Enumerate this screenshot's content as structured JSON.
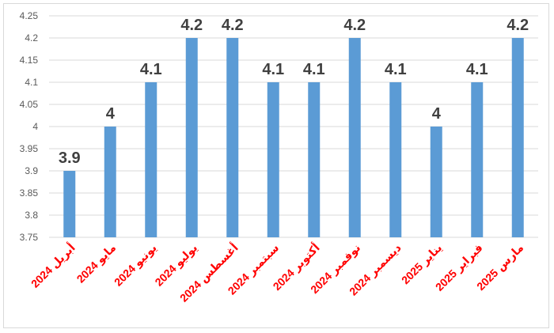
{
  "chart_data": {
    "type": "bar",
    "categories": [
      "أبريل 2024",
      "مايو 2024",
      "يونيو 2024",
      "يوليو 2024",
      "أغسطس 2024",
      "سبتمبر 2024",
      "أكتوبر 2024",
      "نوفمبر 2024",
      "ديسمبر 2024",
      "يناير 2025",
      "فبراير 2025",
      "مارس 2025"
    ],
    "values": [
      3.9,
      4.0,
      4.1,
      4.2,
      4.2,
      4.1,
      4.1,
      4.2,
      4.1,
      4.0,
      4.1,
      4.2
    ],
    "data_labels": [
      "3.9",
      "4",
      "4.1",
      "4.2",
      "4.2",
      "4.1",
      "4.1",
      "4.2",
      "4.1",
      "4",
      "4.1",
      "4.2"
    ],
    "y_ticks": [
      "3.75",
      "3.8",
      "3.85",
      "3.9",
      "3.95",
      "4",
      "4.05",
      "4.1",
      "4.15",
      "4.2",
      "4.25"
    ],
    "ylim": [
      3.75,
      4.25
    ],
    "title": "",
    "xlabel": "",
    "ylabel": "",
    "grid": true,
    "legend": "none",
    "colors": {
      "bar": "#5b9bd5",
      "grid": "#d9d9d9",
      "category_label": "#ff0000",
      "data_label": "#404040",
      "tick_label": "#595959"
    }
  }
}
